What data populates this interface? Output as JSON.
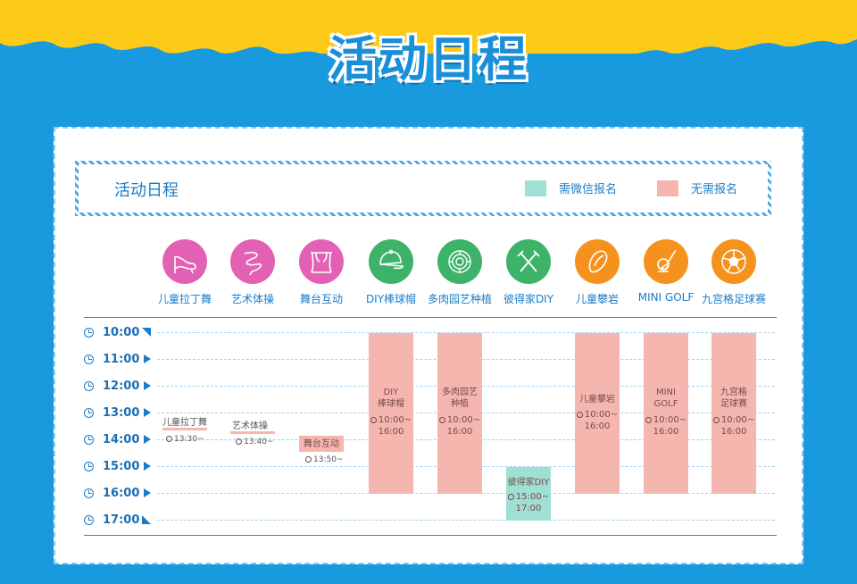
{
  "page": {
    "title": "活动日程"
  },
  "colors": {
    "background": "#1a9ade",
    "top_band": "#fdcb17",
    "wechat_required": "#9fe0d2",
    "no_registration": "#f6b6b0",
    "accent": "#1a7cc7"
  },
  "schedule": {
    "title": "活动日程",
    "legend": [
      {
        "label": "需微信报名",
        "color": "#9fe0d2"
      },
      {
        "label": "无需报名",
        "color": "#f6b6b0"
      }
    ],
    "activities": [
      {
        "label": "儿童拉丁舞",
        "icon": "dance-shoe-icon",
        "color": "#e361b4"
      },
      {
        "label": "艺术体操",
        "icon": "ribbon-icon",
        "color": "#e361b4"
      },
      {
        "label": "舞台互动",
        "icon": "stage-curtain-icon",
        "color": "#e361b4"
      },
      {
        "label": "DIY棒球帽",
        "icon": "baseball-cap-icon",
        "color": "#3db36a"
      },
      {
        "label": "多肉园艺种植",
        "icon": "succulent-icon",
        "color": "#3db36a"
      },
      {
        "label": "彼得家DIY",
        "icon": "fork-knife-icon",
        "color": "#3db36a"
      },
      {
        "label": "儿童攀岩",
        "icon": "climbing-hold-icon",
        "color": "#f5921e"
      },
      {
        "label": "MINI GOLF",
        "icon": "golf-icon",
        "color": "#f5921e"
      },
      {
        "label": "九宫格足球赛",
        "icon": "soccer-ball-icon",
        "color": "#f5921e"
      }
    ],
    "times": [
      "10:00",
      "11:00",
      "12:00",
      "13:00",
      "14:00",
      "15:00",
      "16:00",
      "17:00"
    ],
    "events": [
      {
        "name": "儿童拉丁舞",
        "time": "13:30~",
        "type": "short"
      },
      {
        "name": "艺术体操",
        "time": "13:40~",
        "type": "short"
      },
      {
        "name": "舞台互动",
        "time": "13:50~",
        "type": "short"
      },
      {
        "name_line1": "DIY",
        "name_line2": "棒球帽",
        "time_start": "10:00~",
        "time_end": "16:00",
        "type": "block"
      },
      {
        "name_line1": "多肉园艺",
        "name_line2": "种植",
        "time_start": "10:00~",
        "time_end": "16:00",
        "type": "block"
      },
      {
        "name_line1": "彼得家DIY",
        "time_start": "15:00~",
        "time_end": "17:00",
        "type": "block"
      },
      {
        "name_line1": "儿童攀岩",
        "time_start": "10:00~",
        "time_end": "16:00",
        "type": "block"
      },
      {
        "name_line1": "MINI",
        "name_line2": "GOLF",
        "time_start": "10:00~",
        "time_end": "16:00",
        "type": "block"
      },
      {
        "name_line1": "九宫格",
        "name_line2": "足球赛",
        "time_start": "10:00~",
        "time_end": "16:00",
        "type": "block"
      }
    ]
  }
}
